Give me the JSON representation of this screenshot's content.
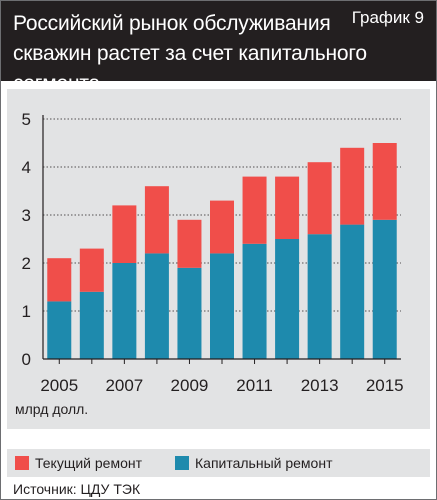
{
  "header": {
    "title_line1": "Российский рынок обслуживания",
    "title_line2": "скважин растет за счет капитального сегмента",
    "graph_number": "График 9"
  },
  "unit_label": "млрд долл.",
  "source": "Источник: ЦДУ ТЭК",
  "colors": {
    "current_repair": "#f04e4a",
    "capital_repair": "#1e8aad",
    "panel": "#e2e3e4",
    "header": "#231f20"
  },
  "legend": [
    {
      "label": "Текущий ремонт",
      "color": "#f04e4a"
    },
    {
      "label": "Капитальный ремонт",
      "color": "#1e8aad"
    }
  ],
  "chart_data": {
    "type": "bar",
    "stacked": true,
    "categories": [
      "2005",
      "2006",
      "2007",
      "2008",
      "2009",
      "2010",
      "2011",
      "2012",
      "2013",
      "2014",
      "2015"
    ],
    "x_tick_labels": [
      "2005",
      "",
      "2007",
      "",
      "2009",
      "",
      "2011",
      "",
      "2013",
      "",
      "2015"
    ],
    "series": [
      {
        "name": "Капитальный ремонт",
        "values": [
          1.2,
          1.4,
          2.0,
          2.2,
          1.9,
          2.2,
          2.4,
          2.5,
          2.6,
          2.8,
          2.9
        ]
      },
      {
        "name": "Текущий ремонт",
        "values": [
          0.9,
          0.9,
          1.2,
          1.4,
          1.0,
          1.1,
          1.4,
          1.3,
          1.5,
          1.6,
          1.6
        ]
      }
    ],
    "ylim": [
      0,
      5
    ],
    "yticks": [
      0,
      1,
      2,
      3,
      4,
      5
    ],
    "ylabel": "млрд долл.",
    "grid": "horizontal dashed"
  }
}
